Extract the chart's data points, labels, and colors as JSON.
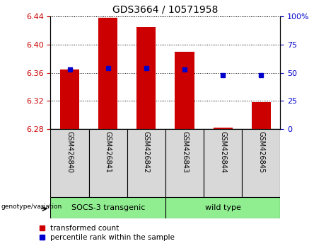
{
  "title": "GDS3664 / 10571958",
  "samples": [
    "GSM426840",
    "GSM426841",
    "GSM426842",
    "GSM426843",
    "GSM426844",
    "GSM426845"
  ],
  "red_values": [
    6.365,
    6.438,
    6.425,
    6.39,
    6.282,
    6.318
  ],
  "blue_values": [
    53,
    54,
    54,
    53,
    48,
    48
  ],
  "ylim_left": [
    6.28,
    6.44
  ],
  "ylim_right": [
    0,
    100
  ],
  "yticks_left": [
    6.28,
    6.32,
    6.36,
    6.4,
    6.44
  ],
  "yticks_right": [
    0,
    25,
    50,
    75,
    100
  ],
  "ytick_right_labels": [
    "0",
    "25",
    "50",
    "75",
    "100%"
  ],
  "group_label": "genotype/variation",
  "group1_label": "SOCS-3 transgenic",
  "group2_label": "wild type",
  "legend_red": "transformed count",
  "legend_blue": "percentile rank within the sample",
  "bar_width": 0.5,
  "red_color": "#CC0000",
  "blue_color": "#0000CC",
  "tick_color_left": "#CC0000",
  "tick_color_right": "#0000CC",
  "cell_bg": "#d8d8d8",
  "group_bg": "#90EE90",
  "base_value": 6.28
}
